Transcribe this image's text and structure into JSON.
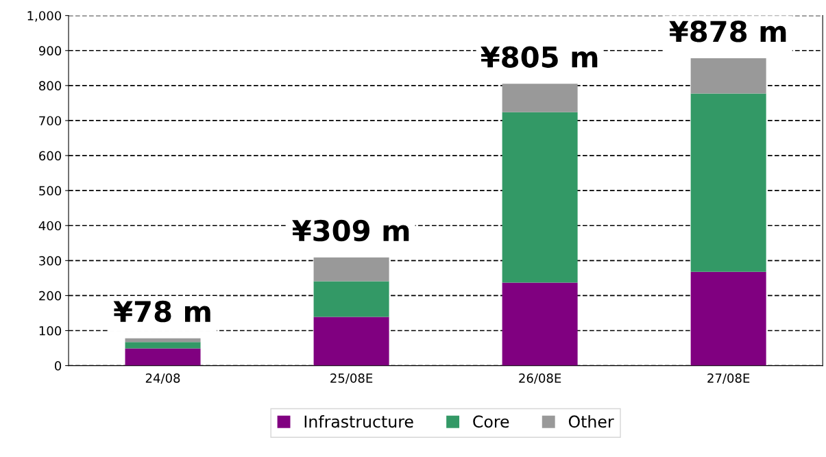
{
  "chart_data": {
    "type": "bar",
    "stacked": true,
    "categories": [
      "24/08",
      "25/08E",
      "26/08E",
      "27/08E"
    ],
    "series": [
      {
        "name": "Infrastructure",
        "color": "#800080",
        "values": [
          49,
          139,
          237,
          268
        ]
      },
      {
        "name": "Core",
        "color": "#339966",
        "values": [
          18,
          102,
          487,
          509
        ]
      },
      {
        "name": "Other",
        "color": "#999999",
        "values": [
          11,
          68,
          81,
          101
        ]
      }
    ],
    "totals": [
      "¥78 m",
      "¥309 m",
      "¥805 m",
      "¥878 m"
    ],
    "ylim": [
      0,
      1000
    ],
    "yticks": [
      0,
      100,
      200,
      300,
      400,
      500,
      600,
      700,
      800,
      900,
      {
        "value": 1000,
        "label": "1,000"
      }
    ],
    "grid": "y",
    "line_style": "dashed",
    "legend": "bottom"
  }
}
